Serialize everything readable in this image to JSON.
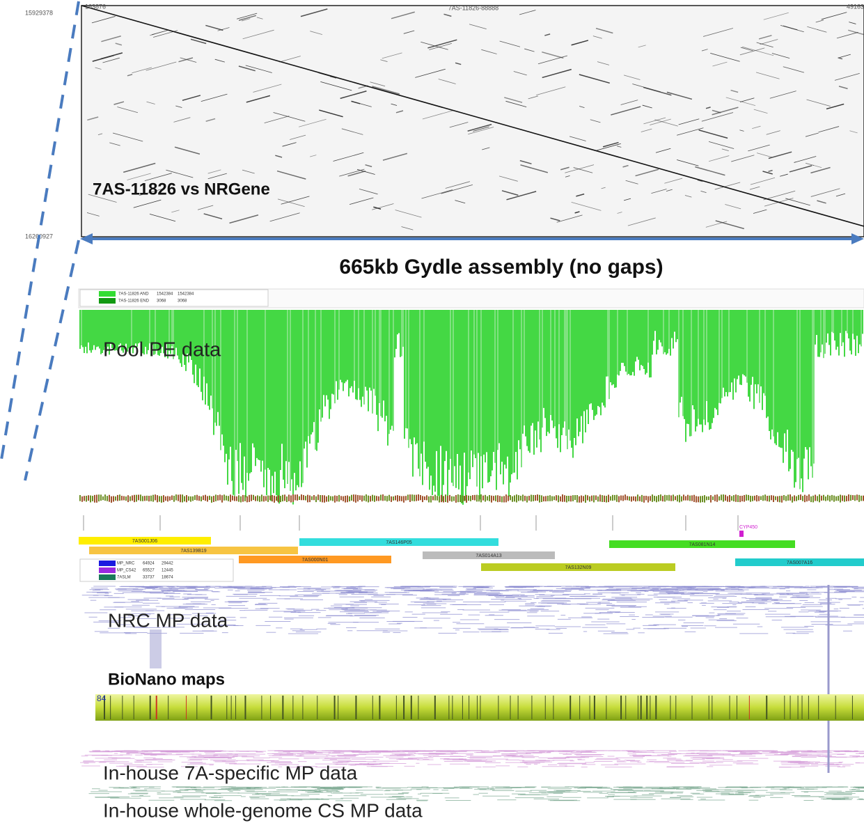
{
  "dotplot": {
    "x_start": "163876",
    "x_label": "7AS-11826-88888",
    "x_end": "49163",
    "y_start": "15929378",
    "y_end": "16260927",
    "title": "7AS-11826 vs NRGene"
  },
  "assembly_label": "665kb Gydle assembly (no gaps)",
  "tracks": {
    "legend": [
      {
        "name": "7AS-11826 AND",
        "count": "1542384",
        "total": "1542384"
      },
      {
        "name": "7AS-11826 END",
        "count": "3068",
        "total": "3068"
      }
    ],
    "pool_label": "Pool PE data",
    "bacs": [
      "7AS001J06",
      "7AS139B19",
      "7AS146P05",
      "7AS000N01",
      "7AS014A13",
      "7AS081N14",
      "7AS132N09",
      "7AS007A16"
    ],
    "gene": "CYP450",
    "mp_legend": [
      {
        "name": "MP_NRC",
        "count": "64924",
        "total": "29442"
      },
      {
        "name": "MP_CS42",
        "count": "65527",
        "total": "12445"
      },
      {
        "name": "7ASLM",
        "count": "33737",
        "total": "18674"
      }
    ],
    "nrc_label": "NRC MP data",
    "bionano_label": "BioNano maps",
    "bionano_id": "84",
    "inhouse_7a_label": "In-house 7A-specific MP data",
    "inhouse_cs_label": "In-house whole-genome CS MP data"
  }
}
